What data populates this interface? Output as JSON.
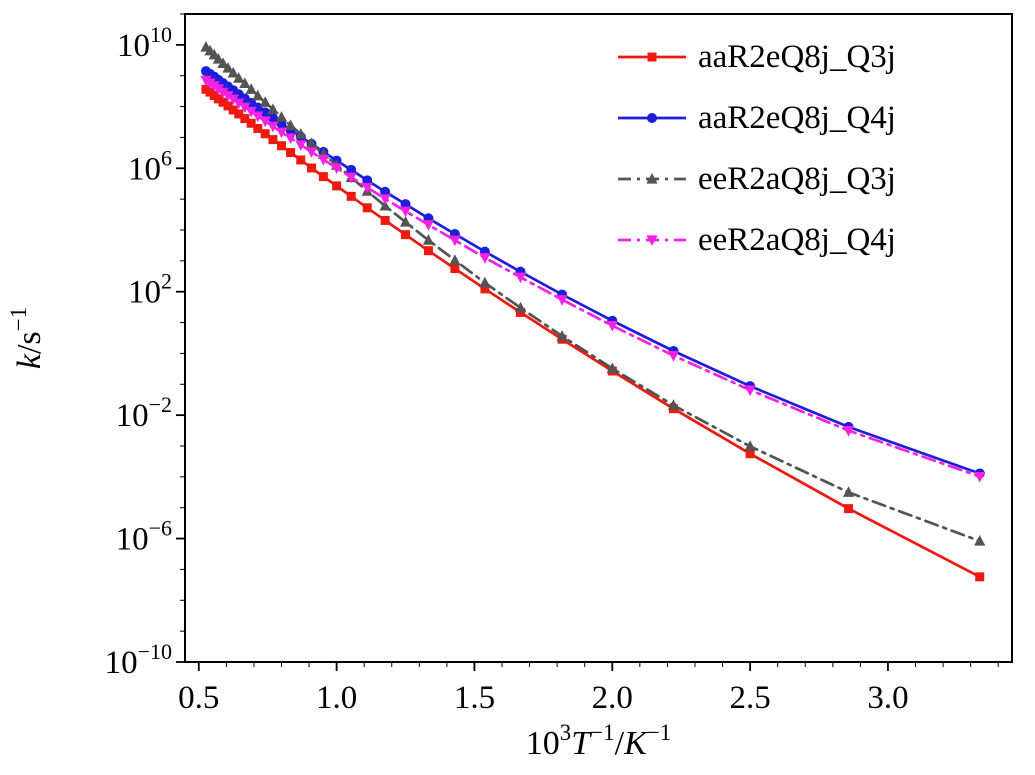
{
  "figure": {
    "background": "#ffffff",
    "axis_color": "#000000"
  },
  "chart_data": {
    "type": "line",
    "title": "",
    "xlabel": "10³T⁻¹/K⁻¹",
    "ylabel": "k/s⁻¹",
    "xlabel_parts": [
      {
        "text": "10",
        "style": "normal"
      },
      {
        "text": "3",
        "style": "sup"
      },
      {
        "text": "T",
        "style": "italic"
      },
      {
        "text": "−1",
        "style": "sup"
      },
      {
        "text": "/",
        "style": "normal"
      },
      {
        "text": "K",
        "style": "italic"
      },
      {
        "text": "−1",
        "style": "sup"
      }
    ],
    "ylabel_parts": [
      {
        "text": "k",
        "style": "italic"
      },
      {
        "text": "/s",
        "style": "normal"
      },
      {
        "text": "−1",
        "style": "sup"
      }
    ],
    "xlim": [
      0.45,
      3.45
    ],
    "ylim_log": [
      -10,
      11
    ],
    "x_ticks": [
      0.5,
      1.0,
      1.5,
      2.0,
      2.5,
      3.0
    ],
    "x_tick_labels": [
      "0.5",
      "1.0",
      "1.5",
      "2.0",
      "2.5",
      "3.0"
    ],
    "x_minor_step": 0.1,
    "y_ticks_log": [
      10,
      6,
      2,
      -2,
      -6,
      -10
    ],
    "y_tick_exponents": [
      "10",
      "6",
      "2",
      "−2",
      "−6",
      "−10"
    ],
    "grid": false,
    "legend_position": "upper right",
    "x": [
      0.526,
      0.541,
      0.556,
      0.571,
      0.588,
      0.606,
      0.625,
      0.645,
      0.667,
      0.69,
      0.714,
      0.741,
      0.769,
      0.8,
      0.833,
      0.87,
      0.909,
      0.952,
      1.0,
      1.053,
      1.111,
      1.176,
      1.25,
      1.333,
      1.429,
      1.538,
      1.667,
      1.818,
      2.0,
      2.222,
      2.5,
      2.857,
      3.333
    ],
    "series": [
      {
        "name": "aaR2eQ8j_Q3j",
        "color": "#ee1a10",
        "marker": "square",
        "linestyle": "solid",
        "log10k": [
          8.56,
          8.47,
          8.36,
          8.25,
          8.14,
          8.02,
          7.89,
          7.76,
          7.61,
          7.46,
          7.29,
          7.12,
          6.93,
          6.73,
          6.51,
          6.27,
          6.01,
          5.73,
          5.43,
          5.09,
          4.72,
          4.31,
          3.85,
          3.33,
          2.75,
          2.09,
          1.33,
          0.46,
          -0.57,
          -1.79,
          -3.25,
          -5.03,
          -7.24
        ]
      },
      {
        "name": "aaR2eQ8j_Q4j",
        "color": "#1d1ddd",
        "marker": "circle",
        "linestyle": "solid",
        "log10k": [
          9.15,
          9.06,
          8.97,
          8.87,
          8.76,
          8.65,
          8.53,
          8.4,
          8.26,
          8.12,
          7.97,
          7.81,
          7.63,
          7.44,
          7.24,
          7.02,
          6.79,
          6.53,
          6.25,
          5.95,
          5.61,
          5.24,
          4.84,
          4.38,
          3.87,
          3.3,
          2.65,
          1.91,
          1.06,
          0.08,
          -1.06,
          -2.38,
          -3.89
        ]
      },
      {
        "name": "eeR2aQ8j_Q3j",
        "color": "#545454",
        "marker": "triangle-up",
        "linestyle": "dashdot",
        "log10k": [
          9.93,
          9.81,
          9.68,
          9.54,
          9.4,
          9.25,
          9.09,
          8.92,
          8.75,
          8.56,
          8.35,
          8.14,
          7.91,
          7.66,
          7.39,
          7.11,
          6.8,
          6.46,
          6.1,
          5.7,
          5.26,
          4.78,
          4.26,
          3.67,
          3.02,
          2.29,
          1.48,
          0.56,
          -0.49,
          -1.68,
          -3.01,
          -4.5,
          -6.08
        ]
      },
      {
        "name": "eeR2aQ8j_Q4j",
        "color": "#f322e2",
        "marker": "triangle-down",
        "linestyle": "dashdot",
        "log10k": [
          8.85,
          8.76,
          8.67,
          8.57,
          8.46,
          8.35,
          8.24,
          8.11,
          7.98,
          7.84,
          7.69,
          7.53,
          7.36,
          7.17,
          6.98,
          6.76,
          6.53,
          6.28,
          6.01,
          5.71,
          5.38,
          5.01,
          4.61,
          4.17,
          3.67,
          3.1,
          2.47,
          1.74,
          0.9,
          -0.07,
          -1.19,
          -2.5,
          -3.99
        ]
      }
    ]
  }
}
